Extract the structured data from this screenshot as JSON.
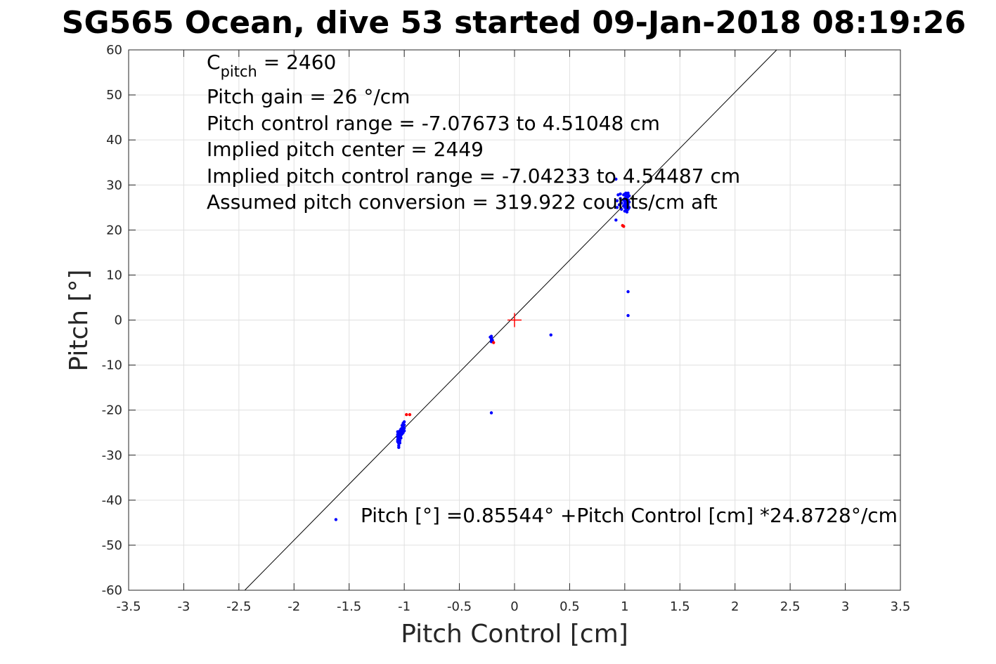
{
  "chart_data": {
    "type": "scatter",
    "title": "SG565 Ocean, dive 53 started 09-Jan-2018 08:19:26",
    "xlabel": "Pitch Control [cm]",
    "ylabel": "Pitch [°]",
    "xlim": [
      -3.5,
      3.5
    ],
    "ylim": [
      -60,
      60
    ],
    "xticks": [
      -3.5,
      -3,
      -2.5,
      -2,
      -1.5,
      -1,
      -0.5,
      0,
      0.5,
      1,
      1.5,
      2,
      2.5,
      3,
      3.5
    ],
    "xtick_labels": [
      "-3.5",
      "-3",
      "-2.5",
      "-2",
      "-1.5",
      "-1",
      "-0.5",
      "0",
      "0.5",
      "1",
      "1.5",
      "2",
      "2.5",
      "3",
      "3.5"
    ],
    "yticks": [
      -60,
      -50,
      -40,
      -30,
      -20,
      -10,
      0,
      10,
      20,
      30,
      40,
      50,
      60
    ],
    "ytick_labels": [
      "-60",
      "-50",
      "-40",
      "-30",
      "-20",
      "-10",
      "0",
      "10",
      "20",
      "30",
      "40",
      "50",
      "60"
    ],
    "grid": true,
    "colors": {
      "good": "#0000ff",
      "bad": "#ff0000",
      "fit": "#000000",
      "center": "#ff0000",
      "grid": "#e0e0e0"
    },
    "fit_line": {
      "intercept": 0.85544,
      "slope": 24.8728
    },
    "center_marker": {
      "x": 0,
      "y": 0
    },
    "series": [
      {
        "color": "#0000ff",
        "points": [
          [
            -1.62,
            -44.3
          ],
          [
            -0.21,
            -20.6
          ],
          [
            0.33,
            -3.3
          ],
          [
            1.03,
            6.3
          ],
          [
            1.03,
            1.0
          ],
          [
            -0.21,
            -3.6
          ],
          [
            -0.21,
            -4.0
          ],
          [
            -0.21,
            -4.4
          ],
          [
            -0.21,
            -4.8
          ],
          [
            -0.22,
            -3.8
          ],
          [
            -0.2,
            -4.5
          ],
          [
            -1.06,
            -24.8
          ],
          [
            -1.06,
            -25.4
          ],
          [
            -1.06,
            -26.0
          ],
          [
            -1.06,
            -26.6
          ],
          [
            -1.06,
            -27.0
          ],
          [
            -1.05,
            -25.0
          ],
          [
            -1.05,
            -25.8
          ],
          [
            -1.05,
            -26.4
          ],
          [
            -1.05,
            -27.4
          ],
          [
            -1.05,
            -27.9
          ],
          [
            -1.05,
            -28.3
          ],
          [
            -1.04,
            -24.6
          ],
          [
            -1.04,
            -25.4
          ],
          [
            -1.04,
            -26.1
          ],
          [
            -1.04,
            -26.8
          ],
          [
            -1.04,
            -27.3
          ],
          [
            -1.03,
            -24.2
          ],
          [
            -1.03,
            -24.9
          ],
          [
            -1.03,
            -25.6
          ],
          [
            -1.03,
            -26.2
          ],
          [
            -1.02,
            -23.4
          ],
          [
            -1.02,
            -24.0
          ],
          [
            -1.02,
            -24.7
          ],
          [
            -1.02,
            -25.3
          ],
          [
            -1.01,
            -22.9
          ],
          [
            -1.01,
            -23.6
          ],
          [
            -1.01,
            -24.3
          ],
          [
            -1.01,
            -25.0
          ],
          [
            -1.0,
            -22.6
          ],
          [
            -1.0,
            -23.3
          ],
          [
            -1.0,
            -24.0
          ],
          [
            -1.0,
            -24.6
          ],
          [
            0.92,
            31.3
          ],
          [
            0.92,
            22.2
          ],
          [
            0.93,
            25.0
          ],
          [
            0.93,
            26.5
          ],
          [
            0.94,
            27.8
          ],
          [
            0.95,
            25.6
          ],
          [
            0.96,
            27.0
          ],
          [
            0.96,
            28.0
          ],
          [
            0.97,
            26.0
          ],
          [
            0.97,
            24.6
          ],
          [
            0.99,
            27.8
          ],
          [
            0.99,
            26.6
          ],
          [
            0.99,
            25.4
          ],
          [
            1.0,
            28.0
          ],
          [
            1.0,
            27.0
          ],
          [
            1.0,
            26.0
          ],
          [
            1.0,
            25.0
          ],
          [
            1.0,
            24.2
          ],
          [
            1.01,
            28.2
          ],
          [
            1.01,
            27.4
          ],
          [
            1.01,
            26.4
          ],
          [
            1.01,
            25.4
          ],
          [
            1.01,
            24.4
          ],
          [
            1.02,
            28.0
          ],
          [
            1.02,
            27.0
          ],
          [
            1.02,
            26.0
          ],
          [
            1.02,
            25.0
          ],
          [
            1.02,
            24.0
          ],
          [
            1.03,
            28.2
          ],
          [
            1.03,
            27.4
          ],
          [
            1.03,
            26.6
          ],
          [
            1.03,
            25.6
          ],
          [
            1.03,
            24.6
          ],
          [
            1.04,
            27.6
          ],
          [
            1.04,
            26.2
          ],
          [
            1.04,
            25.0
          ]
        ]
      },
      {
        "color": "#ff0000",
        "points": [
          [
            -0.98,
            -21.0
          ],
          [
            -0.95,
            -21.0
          ],
          [
            -0.19,
            -5.0
          ],
          [
            0.98,
            21.0
          ],
          [
            0.99,
            20.8
          ]
        ]
      }
    ],
    "annotations": {
      "cpitch_main": "C",
      "cpitch_sub": "pitch",
      "cpitch_rest": " = 2460",
      "lines": [
        "Pitch gain = 26 °/cm",
        "Pitch control range = -7.07673 to 4.51048 cm",
        "Implied pitch center = 2449",
        "Implied pitch control range = -7.04233 to 4.54487 cm",
        "Assumed pitch conversion = 319.922 counts/cm aft"
      ],
      "fit_text": "Pitch [°] =0.85544° +Pitch Control [cm] *24.8728°/cm"
    }
  }
}
